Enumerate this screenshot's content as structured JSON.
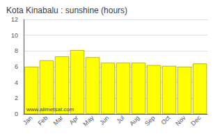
{
  "chart_data": {
    "type": "bar",
    "title": "Kota Kinabalu : sunshine (hours)",
    "categories": [
      "Jan",
      "Feb",
      "Mar",
      "Apr",
      "May",
      "Jun",
      "Jul",
      "Aug",
      "Sep",
      "Oct",
      "Nov",
      "Dec"
    ],
    "values": [
      6.0,
      6.8,
      7.3,
      8.1,
      7.2,
      6.5,
      6.5,
      6.5,
      6.2,
      6.1,
      6.0,
      6.4
    ],
    "color": "#ffff00",
    "ylim": [
      0,
      12
    ],
    "yticks": [
      0,
      2,
      4,
      6,
      8,
      10,
      12
    ],
    "grid": true,
    "annotations": [
      "www.allmetsat.com"
    ]
  }
}
